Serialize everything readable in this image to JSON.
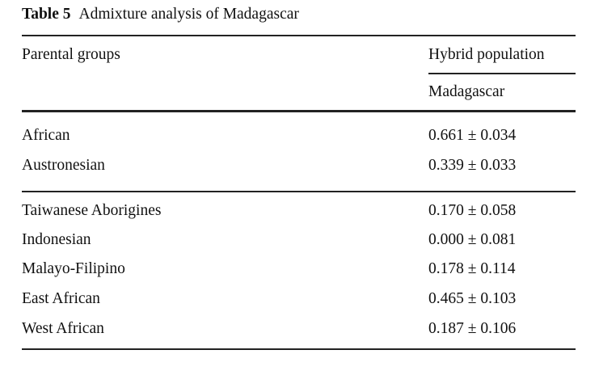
{
  "table": {
    "label": "Table 5",
    "caption": "Admixture analysis of Madagascar",
    "header": {
      "col1": "Parental groups",
      "col2_group": "Hybrid population",
      "col2_sub": "Madagascar"
    },
    "section1": [
      {
        "group": "African",
        "value": "0.661 ± 0.034"
      },
      {
        "group": "Austronesian",
        "value": "0.339 ± 0.033"
      }
    ],
    "section2": [
      {
        "group": "Taiwanese Aborigines",
        "value": "0.170 ± 0.058"
      },
      {
        "group": "Indonesian",
        "value": "0.000 ± 0.081"
      },
      {
        "group": "Malayo-Filipino",
        "value": "0.178 ± 0.114"
      },
      {
        "group": "East African",
        "value": "0.465 ± 0.103"
      },
      {
        "group": "West African",
        "value": "0.187 ± 0.106"
      }
    ]
  }
}
